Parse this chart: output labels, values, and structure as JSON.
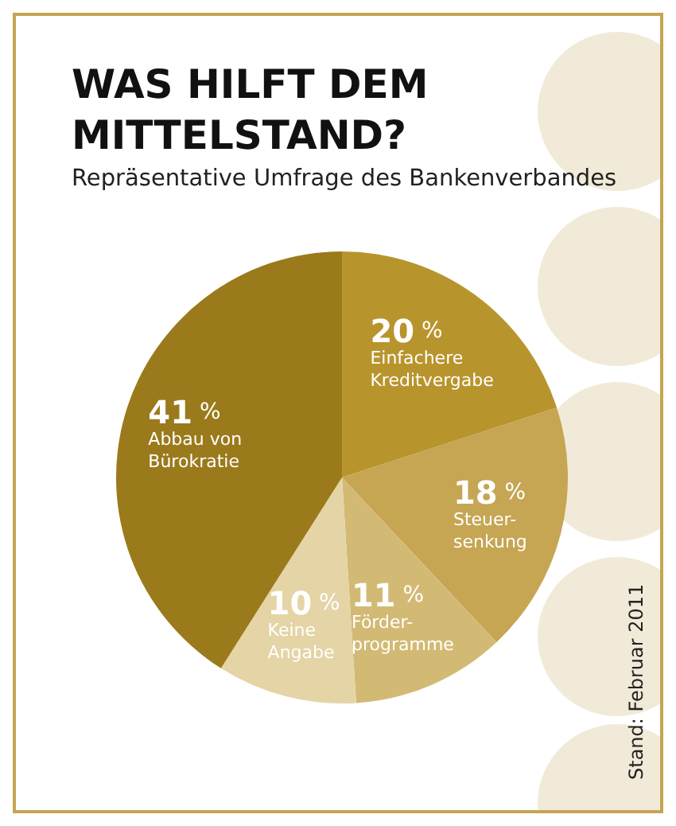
{
  "chart_data": {
    "type": "pie",
    "title": "WAS HILFT DEM\nMITTELSTAND?",
    "subtitle": "Repräsentative Umfrage des Bankenverbandes",
    "categories": [
      "Einfachere\nKreditvergabe",
      "Steuer-\nsenkung",
      "Förder-\nprogramme",
      "Keine\nAngabe",
      "Abbau von\nBürokratie"
    ],
    "values": [
      20,
      18,
      11,
      10,
      41
    ],
    "colors": [
      "#b8942c",
      "#c6a553",
      "#d3ba74",
      "#e4d4a6",
      "#9b7a1c"
    ],
    "value_labels": [
      "20 %",
      "18 %",
      "11 %",
      "10 %",
      "41 %"
    ],
    "annotations": [
      "Stand: Februar 2011"
    ],
    "legend": false
  }
}
